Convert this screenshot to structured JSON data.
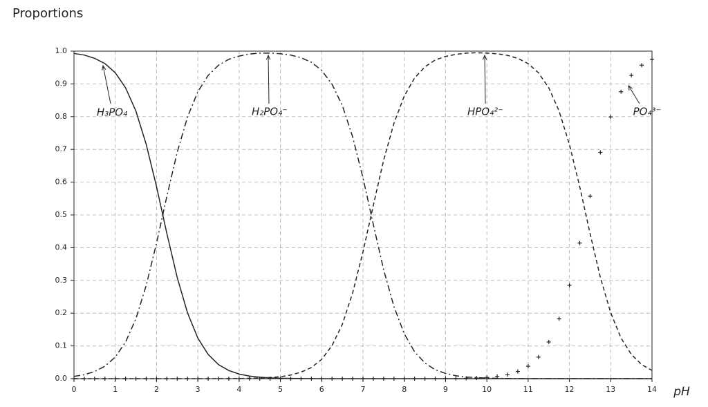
{
  "chart_data": {
    "type": "line",
    "title": "Proportions",
    "x_label": "pH",
    "x": [
      0,
      0.25,
      0.5,
      0.75,
      1,
      1.25,
      1.5,
      1.75,
      2,
      2.25,
      2.5,
      2.75,
      3,
      3.25,
      3.5,
      3.75,
      4,
      4.25,
      4.5,
      4.75,
      5,
      5.25,
      5.5,
      5.75,
      6,
      6.25,
      6.5,
      6.75,
      7,
      7.25,
      7.5,
      7.75,
      8,
      8.25,
      8.5,
      8.75,
      9,
      9.25,
      9.5,
      9.75,
      10,
      10.25,
      10.5,
      10.75,
      11,
      11.25,
      11.5,
      11.75,
      12,
      12.25,
      12.5,
      12.75,
      13,
      13.25,
      13.5,
      13.75,
      14
    ],
    "series": [
      {
        "name": "H₃PO₄",
        "color": "#222222",
        "style": "solid",
        "values": [
          0.993,
          0.988,
          0.978,
          0.962,
          0.934,
          0.888,
          0.817,
          0.715,
          0.586,
          0.443,
          0.309,
          0.201,
          0.124,
          0.074,
          0.043,
          0.025,
          0.014,
          0.008,
          0.0045,
          0.0025,
          0.0014,
          0.0008,
          0.0004,
          0.0002,
          0.0001,
          0,
          0,
          0,
          0,
          0,
          0,
          0,
          0,
          0,
          0,
          0,
          0,
          0,
          0,
          0,
          0,
          0,
          0,
          0,
          0,
          0,
          0,
          0,
          0,
          0,
          0,
          0,
          0,
          0,
          0,
          0,
          0
        ]
      },
      {
        "name": "H₂PO₄⁻",
        "color": "#222222",
        "style": "dashdot",
        "values": [
          0.007,
          0.012,
          0.022,
          0.038,
          0.066,
          0.112,
          0.183,
          0.285,
          0.414,
          0.557,
          0.691,
          0.799,
          0.876,
          0.926,
          0.957,
          0.975,
          0.985,
          0.991,
          0.994,
          0.994,
          0.992,
          0.988,
          0.98,
          0.966,
          0.941,
          0.899,
          0.834,
          0.738,
          0.613,
          0.471,
          0.333,
          0.22,
          0.137,
          0.082,
          0.048,
          0.027,
          0.016,
          0.009,
          0.005,
          0.003,
          0.002,
          0.001,
          0.0005,
          0.0003,
          0,
          0,
          0,
          0,
          0,
          0,
          0,
          0,
          0,
          0,
          0,
          0,
          0
        ]
      },
      {
        "name": "HPO₄²⁻",
        "color": "#222222",
        "style": "dashed",
        "values": [
          0,
          0,
          0,
          0,
          0,
          0,
          0,
          0,
          0,
          0,
          0,
          0,
          0,
          0,
          0.0002,
          0.0003,
          0.0006,
          0.0011,
          0.002,
          0.0035,
          0.006,
          0.011,
          0.02,
          0.034,
          0.059,
          0.101,
          0.166,
          0.262,
          0.387,
          0.529,
          0.667,
          0.78,
          0.863,
          0.918,
          0.952,
          0.973,
          0.984,
          0.99,
          0.994,
          0.995,
          0.994,
          0.992,
          0.987,
          0.978,
          0.962,
          0.934,
          0.888,
          0.817,
          0.715,
          0.586,
          0.443,
          0.309,
          0.201,
          0.124,
          0.074,
          0.043,
          0.025
        ]
      },
      {
        "name": "PO₄³⁻",
        "color": "#222222",
        "style": "plus",
        "values": [
          0,
          0,
          0,
          0,
          0,
          0,
          0,
          0,
          0,
          0,
          0,
          0,
          0,
          0,
          0,
          0,
          0,
          0,
          0,
          0,
          0,
          0,
          0,
          0,
          0,
          0,
          0,
          0,
          0,
          0,
          0,
          0,
          0,
          0,
          0.0001,
          0.0002,
          0.0004,
          0.0007,
          0.0013,
          0.0022,
          0.004,
          0.007,
          0.012,
          0.022,
          0.038,
          0.066,
          0.112,
          0.183,
          0.285,
          0.414,
          0.557,
          0.691,
          0.799,
          0.876,
          0.926,
          0.957,
          0.975
        ]
      }
    ],
    "xlim": [
      0,
      14
    ],
    "xticks": [
      0,
      1,
      2,
      3,
      4,
      5,
      6,
      7,
      8,
      9,
      10,
      11,
      12,
      13,
      14
    ],
    "ylim": [
      0,
      1
    ],
    "yticks": [
      {
        "value": 0,
        "label": "0.0"
      },
      0.1,
      0.2,
      0.3,
      0.4,
      0.5,
      0.6,
      0.7,
      0.8,
      0.9,
      {
        "value": 1,
        "label": "1.0"
      }
    ],
    "grid": true
  }
}
